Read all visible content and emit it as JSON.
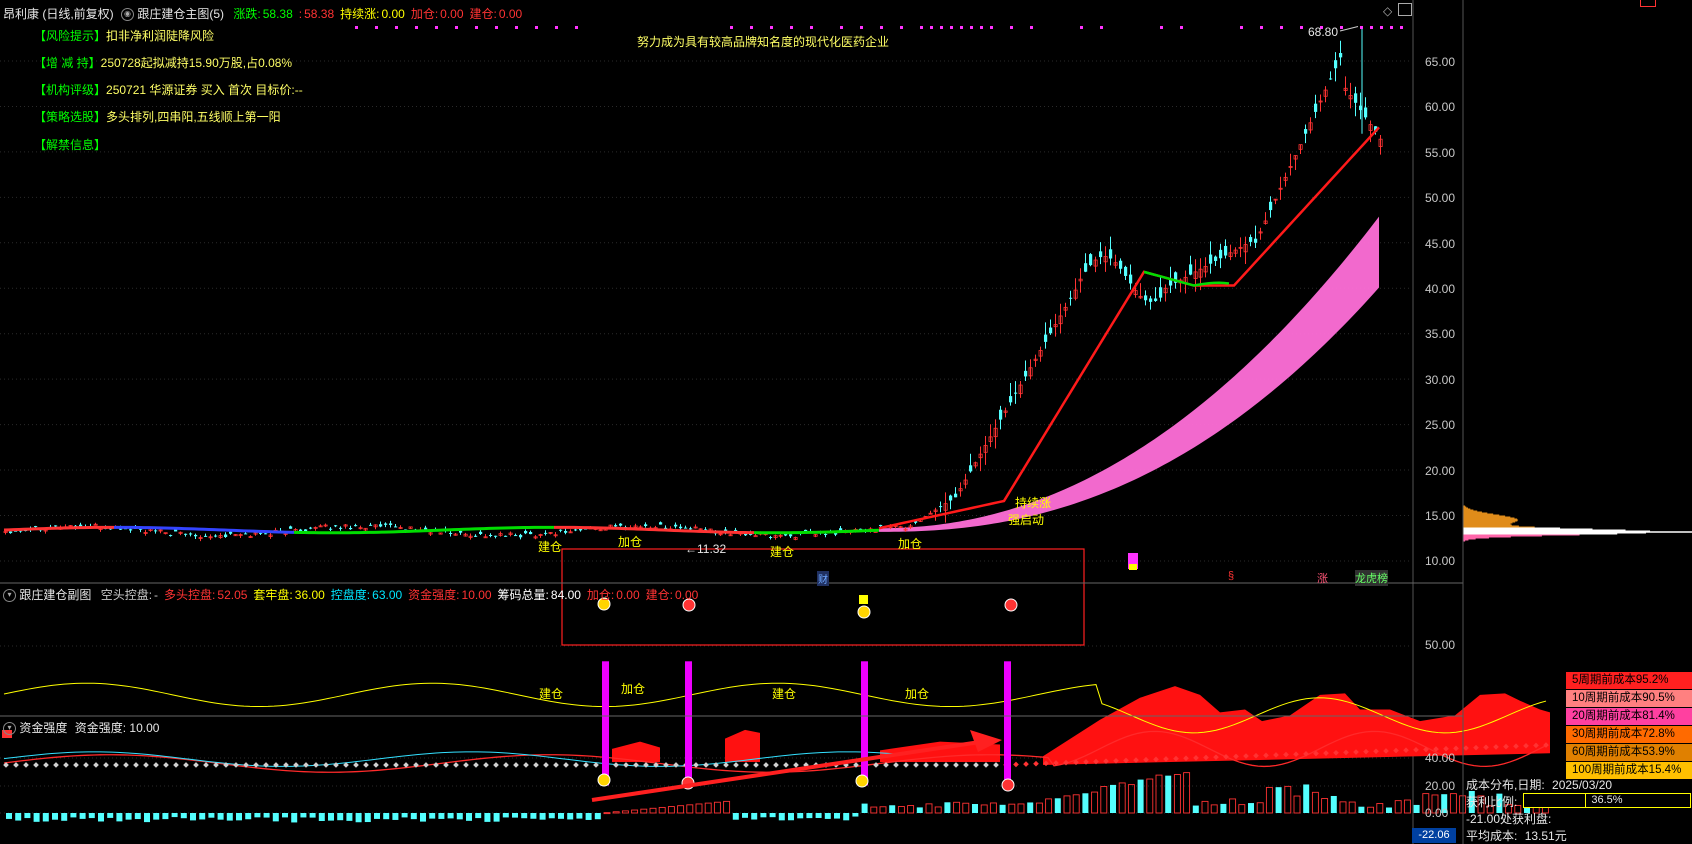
{
  "header": {
    "stock_title": "昂利康 (日线,前复权)",
    "indicator_name": "跟庄建仓主图(5)",
    "fields": [
      {
        "label": "涨跌:",
        "value": "58.38",
        "label_color": "#00ff00",
        "value_color": "#00ff00"
      },
      {
        "label": ":",
        "value": "58.38",
        "label_color": "#ff3333",
        "value_color": "#ff3333"
      },
      {
        "label": "持续涨:",
        "value": "0.00",
        "label_color": "#ffff00",
        "value_color": "#ffff00"
      },
      {
        "label": "加仓:",
        "value": "0.00",
        "label_color": "#ff3333",
        "value_color": "#ff3333"
      },
      {
        "label": "建仓:",
        "value": "0.00",
        "label_color": "#ff3333",
        "value_color": "#ff3333"
      }
    ]
  },
  "info_panel": [
    {
      "tag": "【风险提示】",
      "text": "扣非净利润陡降风险"
    },
    {
      "tag": "【增 减 持】",
      "text": "250728起拟减持15.90万股,占0.08%"
    },
    {
      "tag": "【机构评级】",
      "text": "250721 华源证券 买入 首次 目标价:--"
    },
    {
      "tag": "【策略选股】",
      "text": "多头排列,四串阳,五线顺上第一阳"
    },
    {
      "tag": "【解禁信息】",
      "text": ""
    }
  ],
  "banner_text": "努力成为具有较高品牌知名度的现代化医药企业",
  "price_axis": [
    "65.00",
    "60.00",
    "55.00",
    "50.00",
    "45.00",
    "40.00",
    "35.00",
    "30.00",
    "25.00",
    "20.00",
    "15.00",
    "10.00"
  ],
  "annotations": {
    "high_label": "68.80",
    "low_label": "←11.32",
    "jiancang": "建仓",
    "jiacang": "加仓",
    "chixuzhang": "持续涨",
    "qidong": "强启动",
    "cai_marker": "财",
    "s_marker": "§",
    "zhang_marker": "涨",
    "bang_marker": "龙虎榜"
  },
  "sub_chart": {
    "title": "跟庄建仓副图",
    "fields": [
      {
        "label": "空头控盘:",
        "value": "-",
        "color": "#c8c8c8"
      },
      {
        "label": "多头控盘:",
        "value": "52.05",
        "color": "#ff3333"
      },
      {
        "label": "套牢盘:",
        "value": "36.00",
        "color": "#ffff00"
      },
      {
        "label": "控盘度:",
        "value": "63.00",
        "color": "#00e5ff"
      },
      {
        "label": "资金强度:",
        "value": "10.00",
        "color": "#ff3333"
      },
      {
        "label": "筹码总量:",
        "value": "84.00",
        "color": "#ffffff"
      },
      {
        "label": "加仓:",
        "value": "0.00",
        "color": "#ff3333"
      },
      {
        "label": "建仓:",
        "value": "0.00",
        "color": "#ff3333"
      }
    ],
    "axis_label": "50.00"
  },
  "fund_chart": {
    "title": "资金强度",
    "field_label": "资金强度:",
    "field_value": "10.00",
    "axis": [
      "40.00",
      "20.00",
      "0.00"
    ],
    "bottom_value": "-22.06"
  },
  "cost_distribution": {
    "legend": [
      {
        "label": "5周期前成本95.2%",
        "color": "#ff2020"
      },
      {
        "label": "10周期前成本90.5%",
        "color": "#ff8080"
      },
      {
        "label": "20周期前成本81.4%",
        "color": "#ff40a0"
      },
      {
        "label": "30周期前成本72.8%",
        "color": "#ff6a00"
      },
      {
        "label": "60周期前成本53.9%",
        "color": "#e08000"
      },
      {
        "label": "100周期前成本15.4%",
        "color": "#ffc000"
      }
    ],
    "date_label": "成本分布,日期:",
    "date_value": "2025/03/20",
    "profit_label": "获利比例:",
    "profit_value": "36.5%",
    "profit_ratio": 0.365,
    "profit_at": "-21.00处获利盘:",
    "avg_cost_label": "平均成本:",
    "avg_cost_value": "13.51元"
  }
}
